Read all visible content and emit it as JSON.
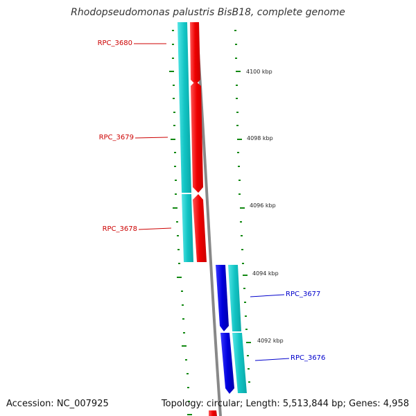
{
  "title": "Rhodopseudomonas palustris BisB18, complete genome",
  "accession": "Accession: NC_007925",
  "topology": "Topology: circular; Length: 5,513,844 bp; Genes: 4,958",
  "colors": {
    "forward": "#ee0000",
    "reverse": "#0000dd",
    "cds_ring": "#22cccc",
    "backbone": "#888888",
    "tick": "#118811"
  },
  "genes": [
    {
      "name": "RPC_3680",
      "strand": "forward"
    },
    {
      "name": "RPC_3679",
      "strand": "forward"
    },
    {
      "name": "RPC_3678",
      "strand": "forward"
    },
    {
      "name": "RPC_3677",
      "strand": "reverse"
    },
    {
      "name": "RPC_3676",
      "strand": "reverse"
    }
  ],
  "scale_labels": [
    "4100 kbp",
    "4098 kbp",
    "4096 kbp",
    "4094 kbp",
    "4092 kbp"
  ]
}
